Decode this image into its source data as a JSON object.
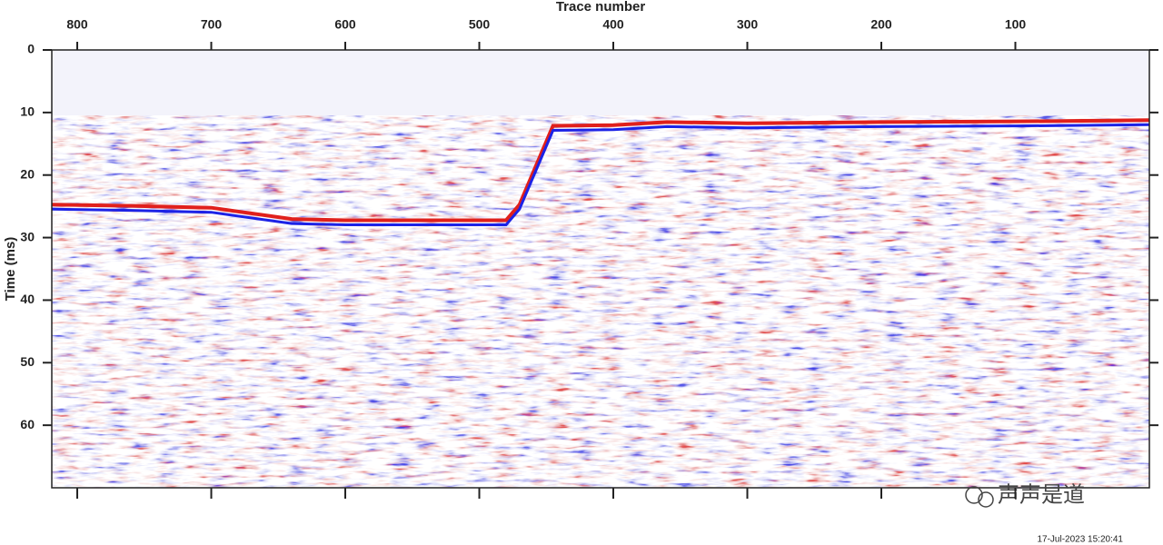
{
  "chart_data": {
    "type": "seismic",
    "x_label": "Trace number",
    "y_label": "Time (ms)",
    "timestamp": "17-Jul-2023 15:20:41",
    "watermark": "声声是道",
    "xlim": [
      819,
      0
    ],
    "xticks": [
      800,
      700,
      600,
      500,
      400,
      300,
      200,
      100
    ],
    "ylim": [
      0,
      70
    ],
    "yticks": [
      0,
      10,
      20,
      30,
      40,
      50,
      60
    ],
    "x": [
      819,
      760,
      700,
      640,
      600,
      480,
      470,
      445,
      400,
      360,
      300,
      200,
      100,
      0
    ],
    "values": [
      24,
      24.2,
      24.5,
      26.3,
      26.5,
      26.5,
      24,
      11.4,
      11.3,
      10.8,
      11,
      10.8,
      10.7,
      10.5
    ]
  }
}
